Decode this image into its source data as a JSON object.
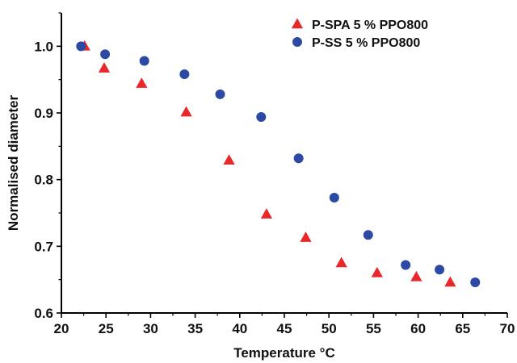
{
  "chart_data": {
    "type": "scatter",
    "title": "",
    "xlabel": "Temperature °C",
    "ylabel": "Normalised diameter",
    "xlim": [
      20,
      70
    ],
    "ylim": [
      0.6,
      1.05
    ],
    "x_ticks": [
      "20",
      "25",
      "30",
      "35",
      "40",
      "45",
      "50",
      "55",
      "60",
      "65",
      "70"
    ],
    "y_ticks": [
      "0.6",
      "0.7",
      "0.8",
      "0.9",
      "1.0"
    ],
    "grid": false,
    "legend_position": "top-right",
    "series": [
      {
        "name": "P-SPA 5 % PPO800",
        "marker": "triangle",
        "color": "#e8282b",
        "points": [
          [
            22.6,
            1.0
          ],
          [
            24.8,
            0.967
          ],
          [
            29.0,
            0.944
          ],
          [
            34.0,
            0.901
          ],
          [
            38.8,
            0.829
          ],
          [
            43.0,
            0.748
          ],
          [
            47.4,
            0.713
          ],
          [
            51.4,
            0.675
          ],
          [
            55.4,
            0.66
          ],
          [
            59.8,
            0.654
          ],
          [
            63.6,
            0.646
          ]
        ]
      },
      {
        "name": "P-SS 5 % PPO800",
        "marker": "circle",
        "color": "#2c4aa3",
        "points": [
          [
            22.2,
            1.0
          ],
          [
            24.9,
            0.988
          ],
          [
            29.3,
            0.978
          ],
          [
            33.8,
            0.958
          ],
          [
            37.8,
            0.928
          ],
          [
            42.4,
            0.894
          ],
          [
            46.6,
            0.832
          ],
          [
            50.6,
            0.773
          ],
          [
            54.4,
            0.717
          ],
          [
            58.6,
            0.672
          ],
          [
            62.4,
            0.665
          ],
          [
            66.4,
            0.646
          ]
        ]
      }
    ]
  }
}
